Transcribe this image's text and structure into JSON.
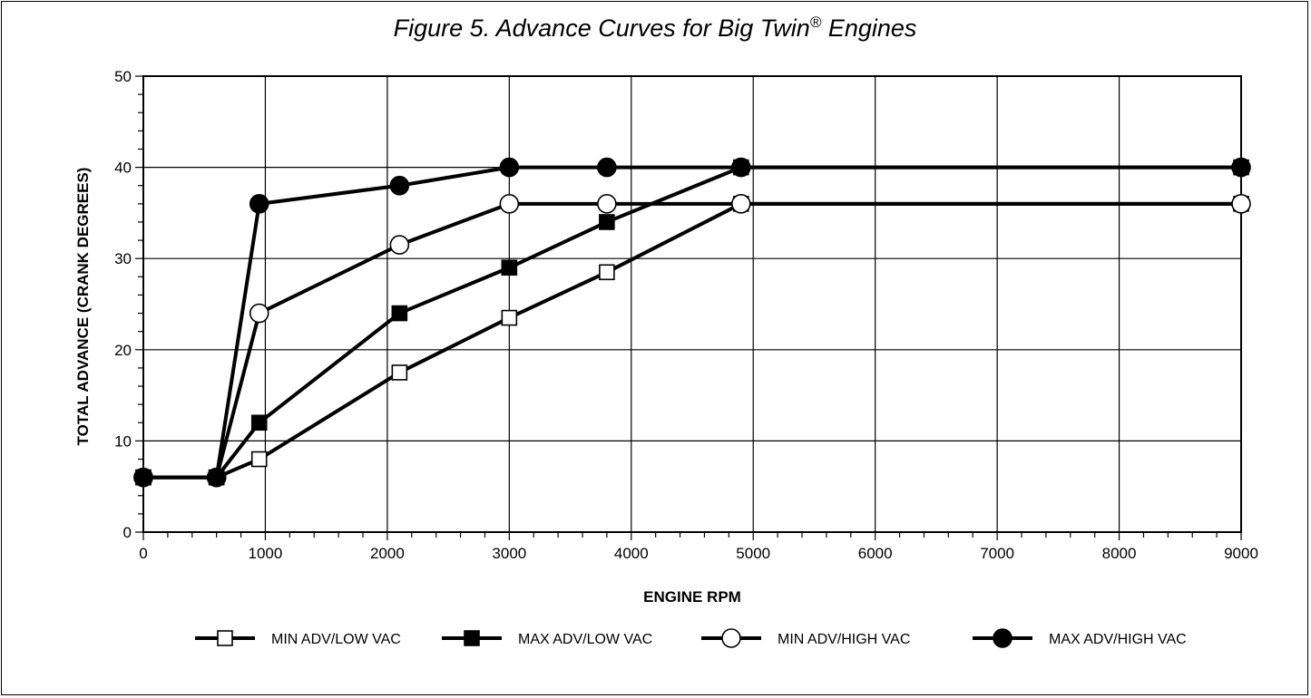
{
  "chart_data": {
    "type": "line",
    "title_main": "Figure 5.  Advance Curves for Big Twin",
    "title_sup": "®",
    "title_end": " Engines",
    "xlabel": "ENGINE RPM",
    "ylabel": "TOTAL ADVANCE (CRANK DEGREES)",
    "x_ticks": [
      "0",
      "1000",
      "2000",
      "3000",
      "4000",
      "5000",
      "6000",
      "7000",
      "8000",
      "9000"
    ],
    "y_ticks": [
      "0",
      "10",
      "20",
      "30",
      "40",
      "50"
    ],
    "ylim": [
      0,
      50
    ],
    "x_axis_note": "x axis tick labels are evenly spaced; 9000 follows 8000 at the same spacing",
    "grid": true,
    "legend_position": "bottom",
    "series": [
      {
        "name": "MIN ADV/LOW VAC",
        "marker": "square-open",
        "points": [
          [
            0,
            6
          ],
          [
            600,
            6
          ],
          [
            950,
            8
          ],
          [
            2100,
            17.5
          ],
          [
            3000,
            23.5
          ],
          [
            3800,
            28.5
          ],
          [
            4900,
            36
          ],
          [
            9000,
            36
          ]
        ]
      },
      {
        "name": "MAX ADV/LOW VAC",
        "marker": "square-filled",
        "points": [
          [
            0,
            6
          ],
          [
            600,
            6
          ],
          [
            950,
            12
          ],
          [
            2100,
            24
          ],
          [
            3000,
            29
          ],
          [
            3800,
            34
          ],
          [
            4900,
            40
          ],
          [
            9000,
            40
          ]
        ]
      },
      {
        "name": "MIN ADV/HIGH VAC",
        "marker": "circle-open",
        "points": [
          [
            0,
            6
          ],
          [
            600,
            6
          ],
          [
            950,
            24
          ],
          [
            2100,
            31.5
          ],
          [
            3000,
            36
          ],
          [
            3800,
            36
          ],
          [
            4900,
            36
          ],
          [
            9000,
            36
          ]
        ]
      },
      {
        "name": "MAX ADV/HIGH VAC",
        "marker": "circle-filled",
        "points": [
          [
            0,
            6
          ],
          [
            600,
            6
          ],
          [
            950,
            36
          ],
          [
            2100,
            38
          ],
          [
            3000,
            40
          ],
          [
            3800,
            40
          ],
          [
            4900,
            40
          ],
          [
            9000,
            40
          ]
        ]
      }
    ]
  }
}
